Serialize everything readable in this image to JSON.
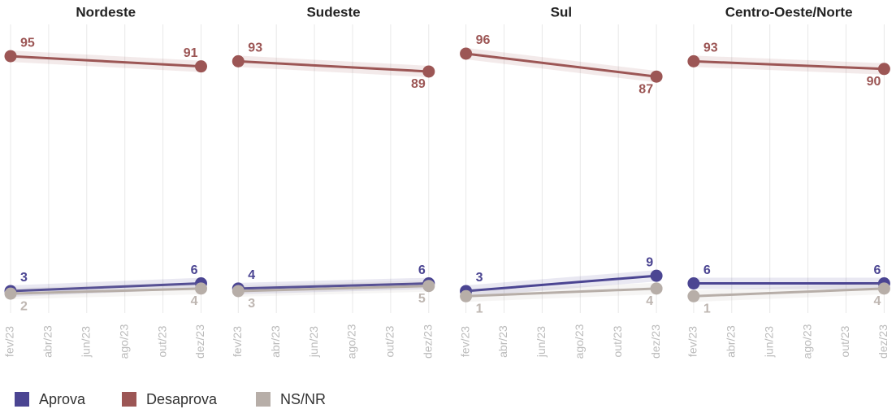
{
  "chart_data": {
    "type": "line",
    "panels": [
      "Nordeste",
      "Sudeste",
      "Sul",
      "Centro-Oeste/Norte"
    ],
    "x": [
      2,
      12
    ],
    "xlim": [
      2,
      12
    ],
    "xticks": [
      {
        "value": 2,
        "label": "fev/23"
      },
      {
        "value": 4,
        "label": "abr/23"
      },
      {
        "value": 6,
        "label": "jun/23"
      },
      {
        "value": 8,
        "label": "ago/23"
      },
      {
        "value": 10,
        "label": "out/23"
      },
      {
        "value": 12,
        "label": "dez/23"
      }
    ],
    "ylim": [
      0,
      100
    ],
    "grid": true,
    "series": [
      {
        "name": "Aprova",
        "color": "#4b4592",
        "values": [
          [
            3,
            6
          ],
          [
            4,
            6
          ],
          [
            3,
            9
          ],
          [
            6,
            6
          ]
        ]
      },
      {
        "name": "Desaprova",
        "color": "#9c5655",
        "values": [
          [
            95,
            91
          ],
          [
            93,
            89
          ],
          [
            96,
            87
          ],
          [
            93,
            90
          ]
        ]
      },
      {
        "name": "NS/NR",
        "color": "#b7aea8",
        "values": [
          [
            2,
            4
          ],
          [
            3,
            5
          ],
          [
            1,
            4
          ],
          [
            1,
            4
          ]
        ]
      }
    ]
  }
}
